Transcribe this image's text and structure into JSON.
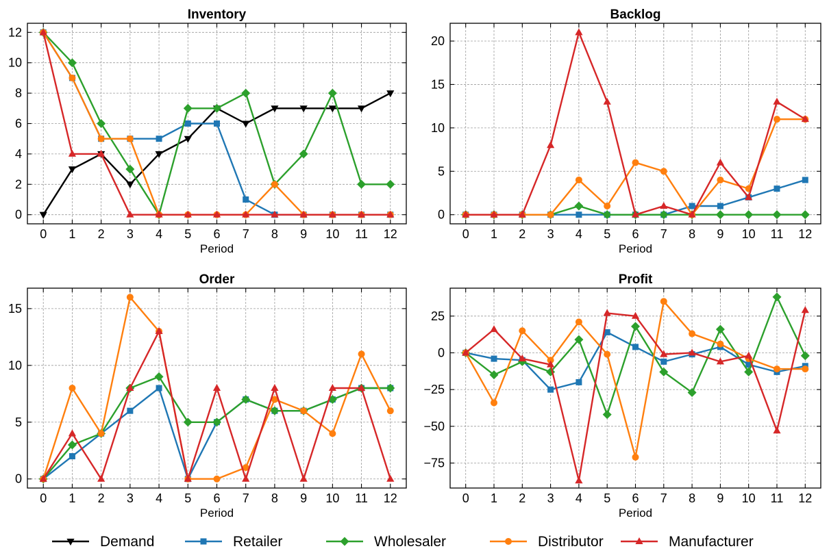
{
  "legend": {
    "position": "bottom-center",
    "entries": [
      "Demand",
      "Retailer",
      "Wholesaler",
      "Distributor",
      "Manufacturer"
    ]
  },
  "series_style": {
    "Demand": {
      "color": "#000000",
      "marker": "triangle-down"
    },
    "Retailer": {
      "color": "#1f77b4",
      "marker": "square"
    },
    "Wholesaler": {
      "color": "#2ca02c",
      "marker": "diamond"
    },
    "Distributor": {
      "color": "#ff7f0e",
      "marker": "circle"
    },
    "Manufacturer": {
      "color": "#d62728",
      "marker": "triangle-up"
    }
  },
  "chart_data": [
    {
      "type": "line",
      "title": "Inventory",
      "xlabel": "Period",
      "ylabel": "",
      "x": [
        0,
        1,
        2,
        3,
        4,
        5,
        6,
        7,
        8,
        9,
        10,
        11,
        12
      ],
      "ylim": [
        -0.6,
        12.6
      ],
      "yticks": [
        0,
        2,
        4,
        6,
        8,
        10,
        12
      ],
      "grid": true,
      "series": [
        {
          "name": "Demand",
          "values": [
            0,
            3,
            4,
            2,
            4,
            5,
            7,
            6,
            7,
            7,
            7,
            7,
            8
          ]
        },
        {
          "name": "Retailer",
          "values": [
            12,
            9,
            5,
            5,
            5,
            6,
            6,
            1,
            0,
            0,
            0,
            0,
            0
          ]
        },
        {
          "name": "Wholesaler",
          "values": [
            12,
            10,
            6,
            3,
            0,
            7,
            7,
            8,
            2,
            4,
            8,
            2,
            2
          ]
        },
        {
          "name": "Distributor",
          "values": [
            12,
            9,
            5,
            5,
            0,
            0,
            0,
            0,
            2,
            0,
            0,
            0,
            0
          ]
        },
        {
          "name": "Manufacturer",
          "values": [
            12,
            4,
            4,
            0,
            0,
            0,
            0,
            0,
            0,
            0,
            0,
            0,
            0
          ]
        }
      ]
    },
    {
      "type": "line",
      "title": "Backlog",
      "xlabel": "Period",
      "ylabel": "",
      "x": [
        0,
        1,
        2,
        3,
        4,
        5,
        6,
        7,
        8,
        9,
        10,
        11,
        12
      ],
      "ylim": [
        -1.05,
        22.05
      ],
      "yticks": [
        0,
        5,
        10,
        15,
        20
      ],
      "grid": true,
      "series": [
        {
          "name": "Retailer",
          "values": [
            0,
            0,
            0,
            0,
            0,
            0,
            0,
            0,
            1,
            1,
            2,
            3,
            4
          ]
        },
        {
          "name": "Wholesaler",
          "values": [
            0,
            0,
            0,
            0,
            1,
            0,
            0,
            0,
            0,
            0,
            0,
            0,
            0
          ]
        },
        {
          "name": "Distributor",
          "values": [
            0,
            0,
            0,
            0,
            4,
            1,
            6,
            5,
            0,
            4,
            3,
            11,
            11
          ]
        },
        {
          "name": "Manufacturer",
          "values": [
            0,
            0,
            0,
            8,
            21,
            13,
            0,
            1,
            0,
            6,
            2,
            13,
            11
          ]
        }
      ]
    },
    {
      "type": "line",
      "title": "Order",
      "xlabel": "Period",
      "ylabel": "",
      "x": [
        0,
        1,
        2,
        3,
        4,
        5,
        6,
        7,
        8,
        9,
        10,
        11,
        12
      ],
      "ylim": [
        -0.8,
        16.8
      ],
      "yticks": [
        0,
        5,
        10,
        15
      ],
      "grid": true,
      "series": [
        {
          "name": "Retailer",
          "values": [
            0,
            2,
            4,
            6,
            8,
            0,
            5,
            7,
            6,
            6,
            7,
            8,
            8
          ]
        },
        {
          "name": "Wholesaler",
          "values": [
            0,
            3,
            4,
            8,
            9,
            5,
            5,
            7,
            6,
            6,
            7,
            8,
            8
          ]
        },
        {
          "name": "Distributor",
          "values": [
            0,
            8,
            4,
            16,
            13,
            0,
            0,
            1,
            7,
            6,
            4,
            11,
            6
          ]
        },
        {
          "name": "Manufacturer",
          "values": [
            0,
            4,
            0,
            8,
            13,
            0,
            8,
            0,
            8,
            0,
            8,
            8,
            0
          ]
        }
      ]
    },
    {
      "type": "line",
      "title": "Profit",
      "xlabel": "Period",
      "ylabel": "",
      "x": [
        0,
        1,
        2,
        3,
        4,
        5,
        6,
        7,
        8,
        9,
        10,
        11,
        12
      ],
      "ylim": [
        -92,
        44
      ],
      "yticks": [
        -75,
        -50,
        -25,
        0,
        25
      ],
      "grid": true,
      "series": [
        {
          "name": "Retailer",
          "values": [
            0,
            -4,
            -5,
            -25,
            -20,
            14,
            4,
            -6,
            -1,
            4,
            -8,
            -13,
            -9
          ]
        },
        {
          "name": "Wholesaler",
          "values": [
            0,
            -15,
            -6,
            -13,
            9,
            -42,
            18,
            -13,
            -27,
            16,
            -13,
            38,
            -2
          ]
        },
        {
          "name": "Distributor",
          "values": [
            0,
            -34,
            15,
            -5,
            21,
            -1,
            -71,
            35,
            13,
            6,
            -4,
            -11,
            -11
          ]
        },
        {
          "name": "Manufacturer",
          "values": [
            0,
            16,
            -4,
            -8,
            -87,
            27,
            25,
            -1,
            0,
            -6,
            -2,
            -53,
            29
          ]
        }
      ]
    }
  ]
}
